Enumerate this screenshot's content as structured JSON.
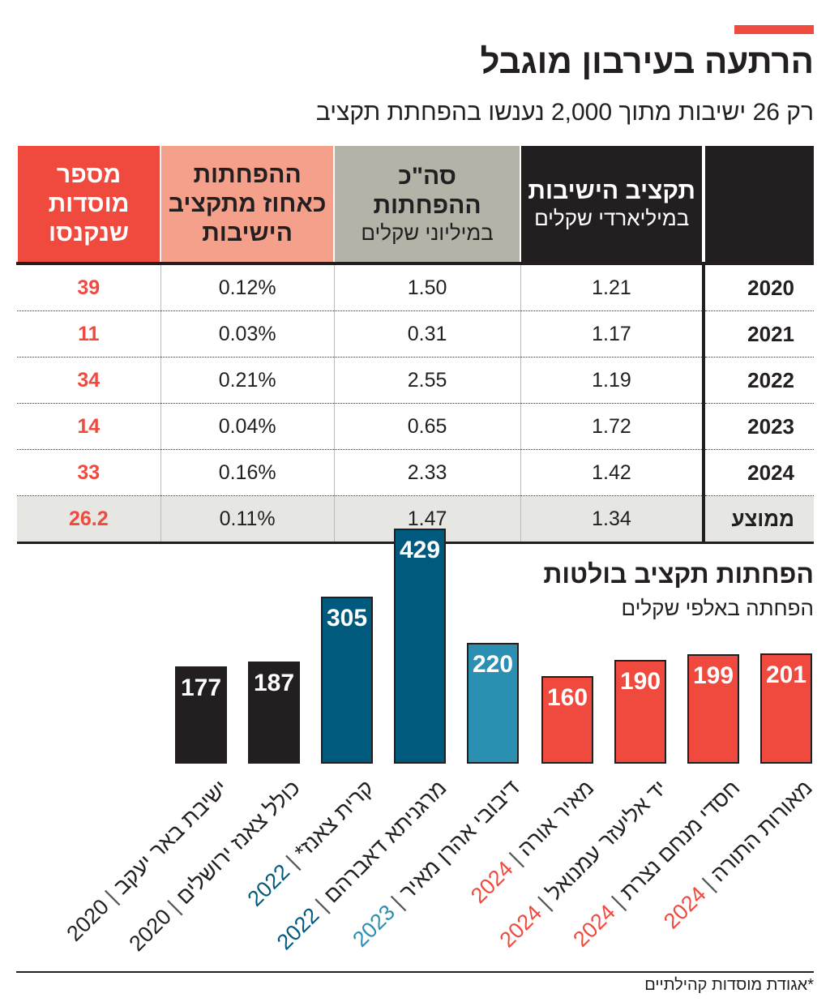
{
  "header": {
    "title": "הרתעה בעירבון מוגבל",
    "subtitle": "רק 26 ישיבות מתוך 2,000 נענשו בהפחתת תקציב",
    "accent_color": "#f0493e"
  },
  "table": {
    "columns": [
      {
        "label": "",
        "sub": ""
      },
      {
        "label": "תקציב הישיבות",
        "sub": "במיליארדי שקלים",
        "color": "#231f20"
      },
      {
        "label": "סה\"כ ההפחתות",
        "sub": "במיליוני שקלים",
        "color": "#b3b3a8"
      },
      {
        "label": "ההפחתות כאחוז מתקציב הישיבות",
        "sub": "",
        "color": "#f4a08a"
      },
      {
        "label": "מספר מוסדות שנקנסו",
        "sub": "",
        "color": "#f0493e"
      }
    ],
    "rows": [
      [
        "2020",
        "1.21",
        "1.50",
        "0.12%",
        "39"
      ],
      [
        "2021",
        "1.17",
        "0.31",
        "0.03%",
        "11"
      ],
      [
        "2022",
        "1.19",
        "2.55",
        "0.21%",
        "34"
      ],
      [
        "2023",
        "1.72",
        "0.65",
        "0.04%",
        "14"
      ],
      [
        "2024",
        "1.42",
        "2.33",
        "0.16%",
        "33"
      ],
      [
        "ממוצע",
        "1.34",
        "1.47",
        "0.11%",
        "26.2"
      ]
    ]
  },
  "chart_data": {
    "type": "bar",
    "title": "הפחתות תקציב בולטות",
    "subtitle": "הפחתה באלפי שקלים",
    "categories": [
      "ישיבת באר יעקב",
      "כולל צאנז ירושלים",
      "קרית צאנז*",
      "מרגניתא דאברהם",
      "דיבובי אהרן מאיר",
      "מאיר אורה",
      "יד אליעזר עמנואל",
      "חסדי מנחם נצרת",
      "מאורות התורה"
    ],
    "years": [
      "2020",
      "2020",
      "2022",
      "2022",
      "2023",
      "2024",
      "2024",
      "2024",
      "2024"
    ],
    "values": [
      177,
      187,
      305,
      429,
      220,
      160,
      190,
      199,
      201
    ],
    "year_colors": {
      "2020": "#231f20",
      "2022": "#005a7e",
      "2023": "#2a8fb0",
      "2024": "#f0493e"
    },
    "ylim": [
      0,
      429
    ],
    "grid": false
  },
  "footnote": "*אגודת מוסדות קהילתיים"
}
